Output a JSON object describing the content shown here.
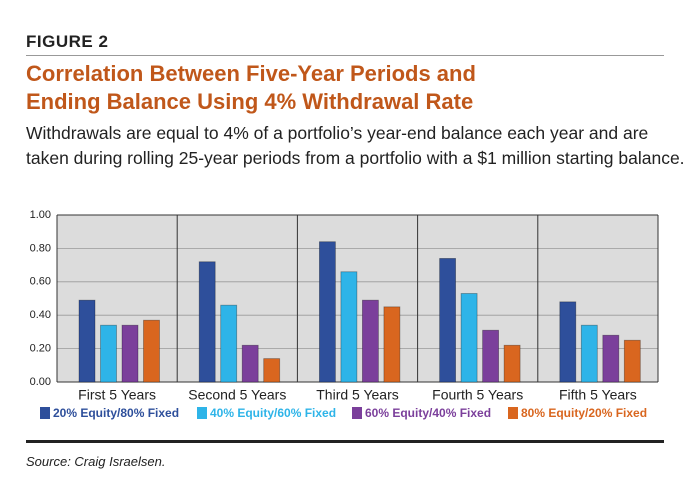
{
  "figure_label": "FIGURE 2",
  "chart_data": {
    "type": "bar",
    "title": "Correlation Between Five-Year Periods and Ending Balance Using 4% Withdrawal Rate",
    "subtitle": "Withdrawals are equal to 4% of a portfolio’s year-end balance each year and are taken during rolling 25-year periods from a portfolio with a $1 million starting balance.",
    "categories": [
      "First 5 Years",
      "Second 5 Years",
      "Third 5 Years",
      "Fourth 5 Years",
      "Fifth 5 Years"
    ],
    "series": [
      {
        "name": "20% Equity/80% Fixed",
        "color": "#2e4f9b",
        "values": [
          0.49,
          0.72,
          0.84,
          0.74,
          0.48
        ]
      },
      {
        "name": "40% Equity/60% Fixed",
        "color": "#2eb4e8",
        "values": [
          0.34,
          0.46,
          0.66,
          0.53,
          0.34
        ]
      },
      {
        "name": "60% Equity/40% Fixed",
        "color": "#7b3f9b",
        "values": [
          0.34,
          0.22,
          0.49,
          0.31,
          0.28
        ]
      },
      {
        "name": "80% Equity/20% Fixed",
        "color": "#d9661f",
        "values": [
          0.37,
          0.14,
          0.45,
          0.22,
          0.25
        ]
      }
    ],
    "ylim": [
      0,
      1
    ],
    "yticks": [
      {
        "value": 0,
        "label": "0.00"
      },
      {
        "value": 0.2,
        "label": "0.20"
      },
      {
        "value": 0.4,
        "label": "0.40"
      },
      {
        "value": 0.6,
        "label": "0.60"
      },
      {
        "value": 0.8,
        "label": "0.80"
      },
      {
        "value": 1,
        "label": "1.00"
      }
    ],
    "grid": true,
    "legend_position": "bottom",
    "source": "Source: Craig Israelsen."
  }
}
